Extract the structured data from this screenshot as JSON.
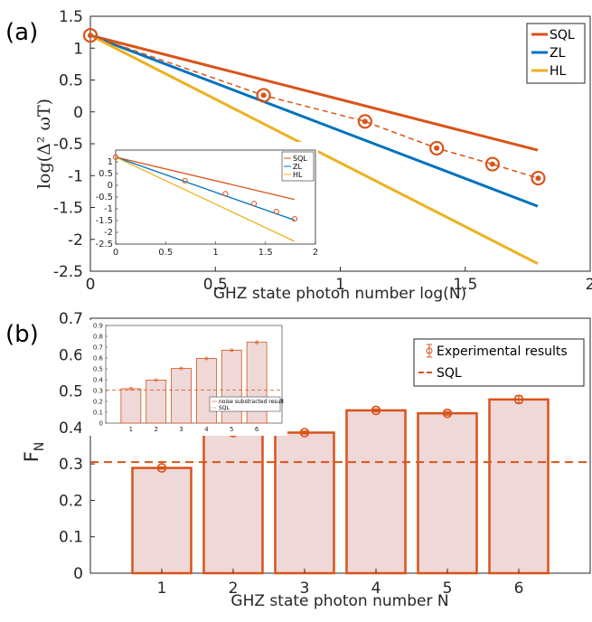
{
  "colors": {
    "sql": "#d95319",
    "zl": "#0072bd",
    "hl": "#edb120",
    "bar_fill": "#efd8d8",
    "bar_edge": "#d95319",
    "exp": "#d95319"
  },
  "chart_data": [
    {
      "panel": "(a)",
      "type": "line",
      "xlabel": "GHZ state photon number log(N)",
      "ylabel": "log(Δ² ωT)",
      "xlim": [
        0,
        2
      ],
      "ylim": [
        -2.5,
        1.5
      ],
      "xticks": [
        "0",
        "0.5",
        "1",
        "1.5",
        "2"
      ],
      "yticks": [
        "-2.5",
        "-2",
        "-1.5",
        "-1",
        "-0.5",
        "0",
        "0.5",
        "1",
        "1.5"
      ],
      "legend_position": "top-right",
      "series": [
        {
          "name": "SQL",
          "style": "solid",
          "x": [
            0,
            1.79
          ],
          "y": [
            1.2,
            -0.6
          ]
        },
        {
          "name": "ZL",
          "style": "solid",
          "x": [
            0,
            1.79
          ],
          "y": [
            1.2,
            -1.48
          ]
        },
        {
          "name": "HL",
          "style": "solid",
          "x": [
            0,
            1.79
          ],
          "y": [
            1.2,
            -2.38
          ]
        }
      ],
      "experimental": {
        "x": [
          0,
          0.693,
          1.099,
          1.386,
          1.609,
          1.792
        ],
        "y": [
          1.2,
          0.26,
          -0.15,
          -0.57,
          -0.82,
          -1.04
        ]
      },
      "inset": {
        "xlim": [
          0,
          2
        ],
        "ylim": [
          -2.5,
          1.5
        ],
        "xticks": [
          "0",
          "0.5",
          "1",
          "1.5",
          "2"
        ],
        "yticks": [
          "-2.5",
          "-2",
          "-1.5",
          "-1",
          "-0.5",
          "0",
          "0.5",
          "1"
        ],
        "legend": [
          "SQL",
          "ZL",
          "HL"
        ],
        "series": [
          {
            "name": "SQL",
            "x": [
              0,
              1.79
            ],
            "y": [
              1.2,
              -0.6
            ]
          },
          {
            "name": "ZL",
            "x": [
              0,
              1.79
            ],
            "y": [
              1.2,
              -1.48
            ]
          },
          {
            "name": "HL",
            "x": [
              0,
              1.79
            ],
            "y": [
              1.2,
              -2.38
            ]
          }
        ],
        "experimental": {
          "x": [
            0,
            0.693,
            1.099,
            1.386,
            1.609,
            1.792
          ],
          "y": [
            1.2,
            0.2,
            -0.36,
            -0.78,
            -1.12,
            -1.43
          ]
        }
      }
    },
    {
      "panel": "(b)",
      "type": "bar",
      "xlabel": "GHZ state photon number N",
      "ylabel": "F",
      "ylabel_sub": "N",
      "ylim": [
        0,
        0.7
      ],
      "categories": [
        "1",
        "2",
        "3",
        "4",
        "5",
        "6"
      ],
      "values": [
        0.289,
        0.386,
        0.386,
        0.447,
        0.439,
        0.477
      ],
      "errors": [
        0.003,
        0.004,
        0.004,
        0.004,
        0.005,
        0.01
      ],
      "yticks": [
        "0",
        "0.1",
        "0.2",
        "0.3",
        "0.4",
        "0.5",
        "0.6",
        "0.7"
      ],
      "sql_level": 0.305,
      "legend": [
        "Experimental results",
        "SQL"
      ],
      "legend_position": "top-right",
      "inset": {
        "ylim": [
          0,
          0.9
        ],
        "categories": [
          "1",
          "2",
          "3",
          "4",
          "5",
          "6"
        ],
        "values": [
          0.317,
          0.397,
          0.504,
          0.596,
          0.672,
          0.745
        ],
        "errors": [
          0.005,
          0.006,
          0.006,
          0.008,
          0.015,
          0.02
        ],
        "yticks": [
          "0",
          "0.1",
          "0.2",
          "0.3",
          "0.4",
          "0.5",
          "0.6",
          "0.7",
          "0.8",
          "0.9"
        ],
        "sql_level": 0.305,
        "legend": [
          "noise substracted result",
          "SQL"
        ]
      }
    }
  ]
}
